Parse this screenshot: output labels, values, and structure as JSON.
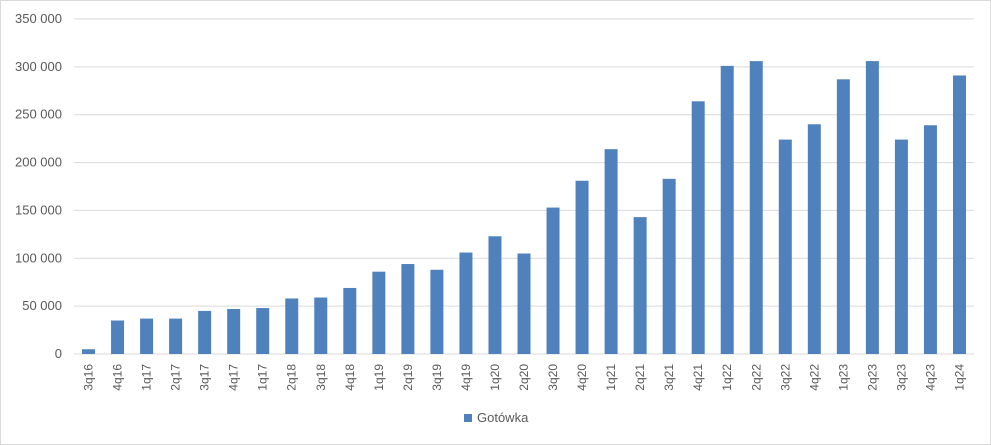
{
  "chart_data": {
    "type": "bar",
    "categories": [
      "3q16",
      "4q16",
      "1q17",
      "2q17",
      "3q17",
      "4q17",
      "1q17",
      "2q18",
      "3q18",
      "4q18",
      "1q19",
      "2q19",
      "3q19",
      "4q19",
      "1q20",
      "2q20",
      "3q20",
      "4q20",
      "1q21",
      "2q21",
      "3q21",
      "4q21",
      "1q22",
      "2q22",
      "3q22",
      "4q22",
      "1q23",
      "2q23",
      "3q23",
      "4q23",
      "1q24"
    ],
    "series": [
      {
        "name": "Gotówka",
        "color": "#4f81bd",
        "values": [
          5000,
          35000,
          37000,
          37000,
          45000,
          47000,
          48000,
          58000,
          59000,
          69000,
          86000,
          94000,
          88000,
          106000,
          123000,
          105000,
          153000,
          181000,
          214000,
          143000,
          183000,
          264000,
          301000,
          306000,
          224000,
          240000,
          287000,
          306000,
          224000,
          239000,
          291000
        ]
      }
    ],
    "ylim": [
      0,
      350000
    ],
    "yticks": [
      0,
      50000,
      100000,
      150000,
      200000,
      250000,
      300000,
      350000
    ],
    "ytick_labels": [
      "0",
      "50 000",
      "100 000",
      "150 000",
      "200 000",
      "250 000",
      "300 000",
      "350 000"
    ],
    "grid": true,
    "legend_position": "bottom"
  }
}
